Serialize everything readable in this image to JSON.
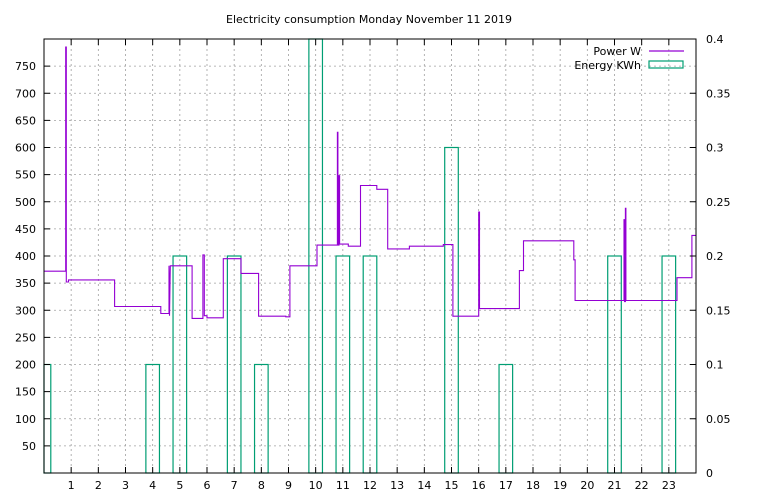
{
  "chart_data": {
    "type": "line",
    "title": "Electricity consumption Monday November 11 2019",
    "xlabel": "",
    "ylabel": "",
    "y2label": "",
    "xlim": [
      0,
      24
    ],
    "ylim": [
      0,
      800
    ],
    "y2lim": [
      0,
      0.4
    ],
    "x_ticks": [
      1,
      2,
      3,
      4,
      5,
      6,
      7,
      8,
      9,
      10,
      11,
      12,
      13,
      14,
      15,
      16,
      17,
      18,
      19,
      20,
      21,
      22,
      23
    ],
    "y_ticks": [
      50,
      100,
      150,
      200,
      250,
      300,
      350,
      400,
      450,
      500,
      550,
      600,
      650,
      700,
      750
    ],
    "y2_ticks": [
      0,
      0.05,
      0.1,
      0.15,
      0.2,
      0.25,
      0.3,
      0.35,
      0.4
    ],
    "grid": true,
    "legend_position": "top-right",
    "series": [
      {
        "name": "Power W",
        "axis": "y",
        "style": "steps",
        "color": "#9400d3",
        "points": [
          [
            0,
            372
          ],
          [
            0.8,
            372
          ],
          [
            0.8,
            785
          ],
          [
            0.82,
            785
          ],
          [
            0.82,
            352
          ],
          [
            0.9,
            352
          ],
          [
            0.9,
            356
          ],
          [
            2.6,
            356
          ],
          [
            2.6,
            307
          ],
          [
            4.3,
            307
          ],
          [
            4.3,
            294
          ],
          [
            4.6,
            294
          ],
          [
            4.6,
            382
          ],
          [
            4.62,
            290
          ],
          [
            4.65,
            382
          ],
          [
            5.45,
            382
          ],
          [
            5.45,
            285
          ],
          [
            5.85,
            285
          ],
          [
            5.85,
            402
          ],
          [
            5.9,
            402
          ],
          [
            5.9,
            290
          ],
          [
            6,
            290
          ],
          [
            6,
            286
          ],
          [
            6.6,
            286
          ],
          [
            6.6,
            395
          ],
          [
            7.25,
            395
          ],
          [
            7.25,
            368
          ],
          [
            7.9,
            368
          ],
          [
            7.9,
            289
          ],
          [
            8.9,
            289
          ],
          [
            8.9,
            288
          ],
          [
            9.05,
            288
          ],
          [
            9.05,
            382
          ],
          [
            10.05,
            382
          ],
          [
            10.05,
            420
          ],
          [
            10.8,
            420
          ],
          [
            10.8,
            628
          ],
          [
            10.82,
            628
          ],
          [
            10.82,
            420
          ],
          [
            10.86,
            420
          ],
          [
            10.86,
            548
          ],
          [
            10.88,
            548
          ],
          [
            10.88,
            422
          ],
          [
            11.2,
            422
          ],
          [
            11.2,
            418
          ],
          [
            11.65,
            418
          ],
          [
            11.65,
            530
          ],
          [
            12.25,
            530
          ],
          [
            12.25,
            523
          ],
          [
            12.65,
            523
          ],
          [
            12.65,
            413
          ],
          [
            13.45,
            413
          ],
          [
            13.45,
            418
          ],
          [
            14.7,
            418
          ],
          [
            14.7,
            421
          ],
          [
            15.05,
            421
          ],
          [
            15.05,
            289
          ],
          [
            16,
            289
          ],
          [
            16,
            481
          ],
          [
            16.03,
            481
          ],
          [
            16.03,
            303
          ],
          [
            17.5,
            303
          ],
          [
            17.5,
            373
          ],
          [
            17.65,
            373
          ],
          [
            17.65,
            428
          ],
          [
            19.5,
            428
          ],
          [
            19.5,
            393
          ],
          [
            19.55,
            393
          ],
          [
            19.55,
            318
          ],
          [
            21.35,
            318
          ],
          [
            21.35,
            467
          ],
          [
            21.37,
            467
          ],
          [
            21.37,
            316
          ],
          [
            21.4,
            316
          ],
          [
            21.4,
            488
          ],
          [
            21.42,
            488
          ],
          [
            21.42,
            318
          ],
          [
            23.3,
            318
          ],
          [
            23.3,
            360
          ],
          [
            23.85,
            360
          ],
          [
            23.85,
            438
          ],
          [
            24,
            438
          ]
        ]
      },
      {
        "name": "Energy KWh",
        "axis": "y2",
        "style": "boxes",
        "color": "#009e73",
        "bars": [
          {
            "x0": 0.0,
            "x1": 0.25,
            "value": 0.1
          },
          {
            "x0": 3.75,
            "x1": 4.25,
            "value": 0.1
          },
          {
            "x0": 4.75,
            "x1": 5.25,
            "value": 0.2
          },
          {
            "x0": 6.75,
            "x1": 7.25,
            "value": 0.2
          },
          {
            "x0": 7.75,
            "x1": 8.25,
            "value": 0.1
          },
          {
            "x0": 9.75,
            "x1": 10.25,
            "value": 0.4
          },
          {
            "x0": 10.75,
            "x1": 11.25,
            "value": 0.2
          },
          {
            "x0": 11.75,
            "x1": 12.25,
            "value": 0.2
          },
          {
            "x0": 14.75,
            "x1": 15.25,
            "value": 0.3
          },
          {
            "x0": 16.75,
            "x1": 17.25,
            "value": 0.1
          },
          {
            "x0": 20.75,
            "x1": 21.25,
            "value": 0.2
          },
          {
            "x0": 22.75,
            "x1": 23.25,
            "value": 0.2
          }
        ]
      }
    ]
  }
}
